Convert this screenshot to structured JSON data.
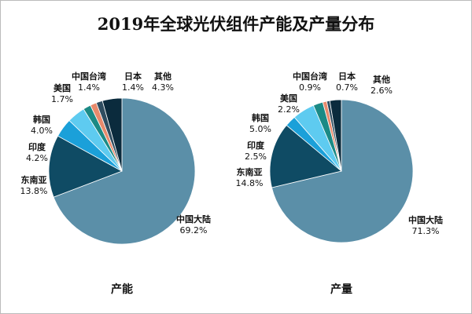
{
  "chart_data": [
    {
      "type": "pie",
      "title": "2019年全球光伏组件产能及产量分布",
      "subtitle": "产能",
      "categories": [
        "中国大陆",
        "东南亚",
        "印度",
        "韩国",
        "美国",
        "中国台湾",
        "日本",
        "其他"
      ],
      "values": [
        69.2,
        13.8,
        4.2,
        4.0,
        1.7,
        1.4,
        1.4,
        4.3
      ],
      "labels": [
        "69.2%",
        "13.8%",
        "4.2%",
        "4.0%",
        "1.7%",
        "1.4%",
        "1.4%",
        "4.3%"
      ],
      "colors": [
        "#5b8fa8",
        "#0f4b64",
        "#1ba0d9",
        "#5ecbf0",
        "#1b8a85",
        "#e88a6c",
        "#2f4d60",
        "#0b2b3d"
      ]
    },
    {
      "type": "pie",
      "subtitle": "产量",
      "categories": [
        "中国大陆",
        "东南亚",
        "印度",
        "韩国",
        "美国",
        "中国台湾",
        "日本",
        "其他"
      ],
      "values": [
        71.3,
        14.8,
        2.5,
        5.0,
        2.2,
        0.9,
        0.7,
        2.6
      ],
      "labels": [
        "71.3%",
        "14.8%",
        "2.5%",
        "5.0%",
        "2.2%",
        "0.9%",
        "0.7%",
        "2.6%"
      ],
      "colors": [
        "#5b8fa8",
        "#0f4b64",
        "#1ba0d9",
        "#5ecbf0",
        "#1b8a85",
        "#e88a6c",
        "#2f4d60",
        "#0b2b3d"
      ]
    }
  ]
}
